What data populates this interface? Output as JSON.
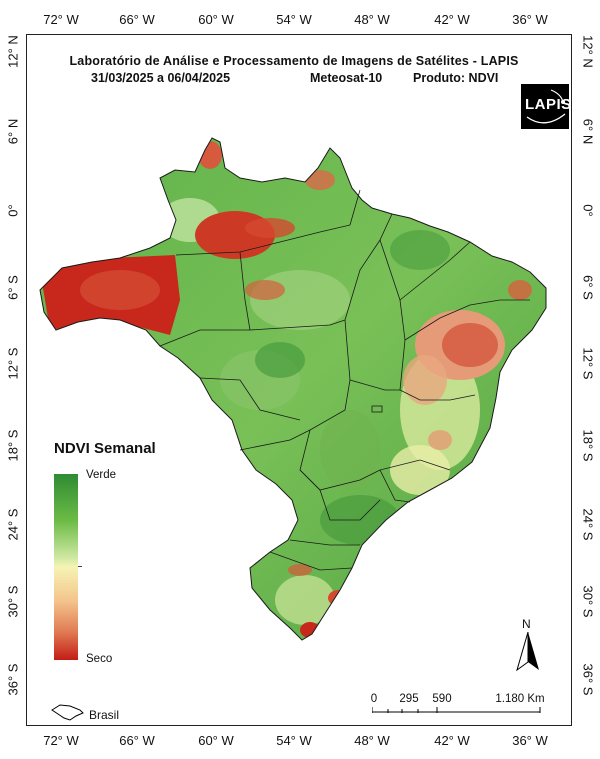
{
  "map": {
    "title": "Laboratório de Análise e Processamento de Imagens de Satélites - LAPIS",
    "period": "31/03/2025  a  06/04/2025",
    "satellite": "Meteosat-10",
    "product": "Produto: NDVI",
    "logo_text": "LAPIS"
  },
  "axes": {
    "longitudes": [
      "72° W",
      "66° W",
      "60° W",
      "54° W",
      "48° W",
      "42° W",
      "36° W"
    ],
    "latitudes": [
      "12° N",
      "6° N",
      "0°",
      "6° S",
      "12° S",
      "18° S",
      "24° S",
      "30° S",
      "36° S"
    ]
  },
  "legend": {
    "title": "NDVI Semanal",
    "high_label": "Verde",
    "low_label": "Seco"
  },
  "scale": {
    "labels": [
      "0",
      "295",
      "590",
      "1.180 Km"
    ]
  },
  "north_arrow": {
    "label": "N"
  },
  "inset": {
    "label": "Brasil"
  },
  "colors": {
    "green_dark": "#2e8b34",
    "green": "#6cbb45",
    "yellow": "#f6f3b5",
    "dry_red": "#c41d16"
  }
}
